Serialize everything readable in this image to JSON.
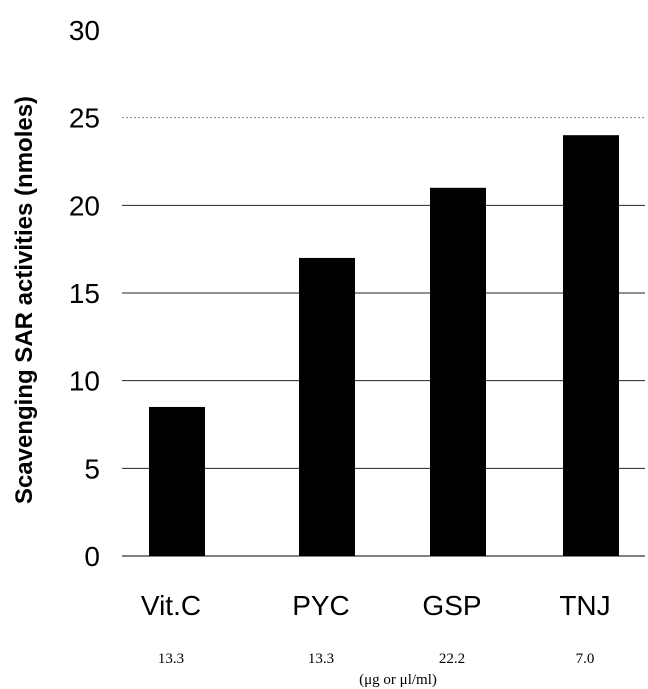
{
  "chart_data": {
    "type": "bar",
    "categories": [
      "Vit.C",
      "PYC",
      "GSP",
      "TNJ"
    ],
    "values": [
      8.5,
      17,
      21,
      24
    ],
    "concentrations": [
      "13.3",
      "13.3",
      "22.2",
      "7.0"
    ],
    "concentration_unit": "(μg or μl/ml)",
    "ylabel": "Scavenging SAR activities (nmoles)",
    "xlabel": "",
    "title": "",
    "ylim": [
      0,
      30
    ],
    "yticks": [
      0,
      5,
      10,
      15,
      20,
      25,
      30
    ],
    "grid": true,
    "bar_color": "#000000"
  }
}
